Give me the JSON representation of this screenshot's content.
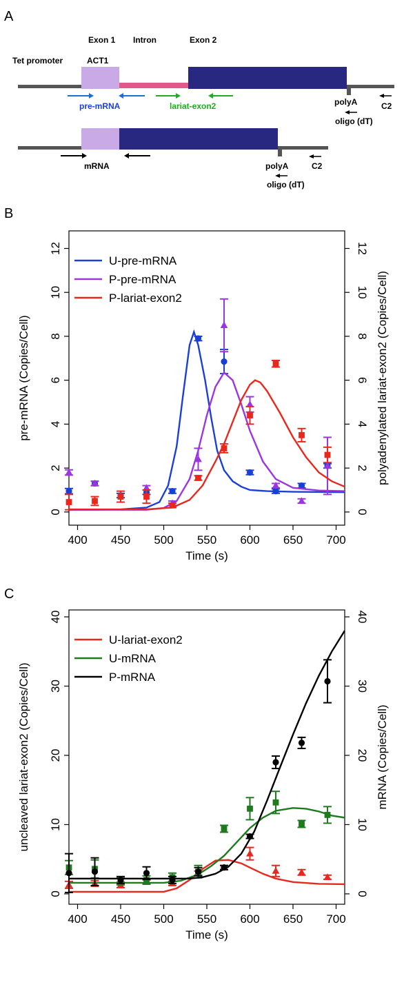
{
  "panel_a": {
    "label": "A",
    "exon1": "Exon 1",
    "intron": "Intron",
    "exon2": "Exon 2",
    "tet_promoter": "Tet promoter",
    "act1": "ACT1",
    "pre_mrna": "pre-mRNA",
    "lariat_exon2": "lariat-exon2",
    "polyA_top": "polyA",
    "oligo_top": "oligo (dT)",
    "c2_top": "C2",
    "mrna": "mRNA",
    "polyA_bottom": "polyA",
    "oligo_bottom": "oligo (dT)",
    "c2_bottom": "C2"
  },
  "colors": {
    "exon1": "#c9a9e6",
    "intron": "#e2588a",
    "exon2": "#282880",
    "line": "#555555",
    "blue": "#1a3fd6",
    "purple": "#9b35e0",
    "red": "#e8281e",
    "green": "#1f7a1f",
    "black": "#000000"
  },
  "chart_data": [
    {
      "panel": "B",
      "type": "line",
      "xlabel": "Time (s)",
      "ylabel_left": "pre-mRNA (Copies/Cell)",
      "ylabel_right": "polyadenylated lariat-exon2 (Copies/Cell)",
      "xlim": [
        390,
        710
      ],
      "ylim": [
        -0.6,
        12.8
      ],
      "xticks": [
        400,
        450,
        500,
        550,
        600,
        650,
        700
      ],
      "yticks": [
        0,
        2,
        4,
        6,
        8,
        10,
        12
      ],
      "legend_position": "top-left",
      "series": [
        {
          "name": "U-pre-mRNA",
          "color": "#1a3fd6",
          "marker": "circle",
          "curve": {
            "x": [
              390,
              420,
              450,
              480,
              495,
              505,
              515,
              522,
              530,
              535,
              540,
              548,
              555,
              562,
              570,
              580,
              590,
              600,
              620,
              650,
              710
            ],
            "y": [
              0.1,
              0.1,
              0.12,
              0.2,
              0.45,
              1.2,
              3.0,
              5.2,
              7.6,
              8.2,
              7.6,
              6.0,
              4.3,
              2.8,
              1.9,
              1.4,
              1.15,
              1.0,
              0.95,
              0.92,
              0.9
            ]
          },
          "points": [
            {
              "x": 390,
              "y": 0.95,
              "err": 0.12
            },
            {
              "x": 420,
              "y": 1.3,
              "err": 0.1
            },
            {
              "x": 450,
              "y": 0.75,
              "err": 0.1
            },
            {
              "x": 480,
              "y": 0.9,
              "err": 0.1
            },
            {
              "x": 510,
              "y": 0.95,
              "err": 0.1
            },
            {
              "x": 540,
              "y": 7.9,
              "err": 0.1
            },
            {
              "x": 570,
              "y": 6.85,
              "err": 0.55
            },
            {
              "x": 600,
              "y": 1.8,
              "err": 0.1
            },
            {
              "x": 630,
              "y": 0.95,
              "err": 0.1
            },
            {
              "x": 660,
              "y": 1.2,
              "err": 0.1
            },
            {
              "x": 690,
              "y": 2.1,
              "err": 0.1
            }
          ]
        },
        {
          "name": "P-pre-mRNA",
          "color": "#9b35e0",
          "marker": "triangle",
          "curve": {
            "x": [
              390,
              480,
              500,
              515,
              530,
              540,
              550,
              560,
              570,
              580,
              590,
              600,
              615,
              630,
              650,
              680,
              710
            ],
            "y": [
              0.1,
              0.1,
              0.18,
              0.5,
              1.5,
              2.8,
              4.4,
              5.7,
              6.35,
              6.0,
              4.9,
              3.7,
              2.3,
              1.5,
              1.1,
              0.98,
              0.95
            ]
          },
          "points": [
            {
              "x": 390,
              "y": 1.8,
              "err": 0.12
            },
            {
              "x": 420,
              "y": 1.3,
              "err": 0.1
            },
            {
              "x": 480,
              "y": 1.1,
              "err": 0.1
            },
            {
              "x": 510,
              "y": 0.4,
              "err": 0.1
            },
            {
              "x": 540,
              "y": 2.4,
              "err": 0.5
            },
            {
              "x": 570,
              "y": 8.5,
              "err": 1.2
            },
            {
              "x": 600,
              "y": 4.9,
              "err": 0.35
            },
            {
              "x": 630,
              "y": 1.2,
              "err": 0.1
            },
            {
              "x": 660,
              "y": 0.5,
              "err": 0.1
            },
            {
              "x": 690,
              "y": 2.1,
              "err": 1.3
            }
          ]
        },
        {
          "name": "P-lariat-exon2",
          "color": "#e8281e",
          "marker": "square",
          "curve": {
            "x": [
              390,
              480,
              510,
              530,
              545,
              560,
              570,
              580,
              590,
              600,
              606,
              612,
              620,
              635,
              650,
              665,
              680,
              695,
              710
            ],
            "y": [
              0.12,
              0.12,
              0.2,
              0.55,
              1.2,
              2.3,
              3.1,
              4.1,
              5.1,
              5.8,
              6.0,
              5.9,
              5.5,
              4.5,
              3.4,
              2.5,
              1.8,
              1.4,
              1.15
            ]
          },
          "points": [
            {
              "x": 390,
              "y": 0.45,
              "err": 0.35
            },
            {
              "x": 420,
              "y": 0.5,
              "err": 0.2
            },
            {
              "x": 450,
              "y": 0.7,
              "err": 0.25
            },
            {
              "x": 480,
              "y": 0.7,
              "err": 0.3
            },
            {
              "x": 510,
              "y": 0.3,
              "err": 0.1
            },
            {
              "x": 540,
              "y": 1.55,
              "err": 0.1
            },
            {
              "x": 570,
              "y": 2.9,
              "err": 0.2
            },
            {
              "x": 600,
              "y": 4.4,
              "err": 0.4
            },
            {
              "x": 630,
              "y": 6.75,
              "err": 0.15
            },
            {
              "x": 660,
              "y": 3.5,
              "err": 0.3
            },
            {
              "x": 690,
              "y": 2.6,
              "err": 0.35
            }
          ]
        }
      ]
    },
    {
      "panel": "C",
      "type": "line",
      "xlabel": "Time (s)",
      "ylabel_left": "uncleaved lariat-exon2 (Copies/Cell)",
      "ylabel_right": "mRNA (Copies/Cell)",
      "xlim": [
        390,
        710
      ],
      "ylim": [
        -1.5,
        41
      ],
      "xticks": [
        400,
        450,
        500,
        550,
        600,
        650,
        700
      ],
      "yticks": [
        0,
        10,
        20,
        30,
        40
      ],
      "legend_position": "top-left",
      "series": [
        {
          "name": "U-lariat-exon2",
          "color": "#e8281e",
          "marker": "triangle",
          "curve": {
            "x": [
              390,
              500,
              515,
              530,
              545,
              560,
              575,
              590,
              600,
              615,
              630,
              650,
              680,
              710
            ],
            "y": [
              0.3,
              0.3,
              0.8,
              2.0,
              3.6,
              4.8,
              4.9,
              4.4,
              3.8,
              2.9,
              2.2,
              1.7,
              1.45,
              1.4
            ]
          },
          "points": [
            {
              "x": 390,
              "y": 1.3,
              "err": 0.5
            },
            {
              "x": 420,
              "y": 1.5,
              "err": 0.4
            },
            {
              "x": 450,
              "y": 1.3,
              "err": 0.4
            },
            {
              "x": 480,
              "y": 1.7,
              "err": 0.3
            },
            {
              "x": 510,
              "y": 1.5,
              "err": 0.3
            },
            {
              "x": 540,
              "y": 3.0,
              "err": 0.3
            },
            {
              "x": 570,
              "y": 3.8,
              "err": 0.3
            },
            {
              "x": 600,
              "y": 5.8,
              "err": 0.9
            },
            {
              "x": 630,
              "y": 3.3,
              "err": 0.8
            },
            {
              "x": 660,
              "y": 3.1,
              "err": 0.4
            },
            {
              "x": 690,
              "y": 2.4,
              "err": 0.3
            }
          ]
        },
        {
          "name": "U-mRNA",
          "color": "#1f7a1f",
          "marker": "square",
          "curve": {
            "x": [
              390,
              500,
              520,
              540,
              555,
              570,
              585,
              600,
              615,
              630,
              650,
              665,
              680,
              695,
              710
            ],
            "y": [
              1.6,
              1.6,
              1.9,
              2.8,
              4.0,
              5.5,
              7.5,
              9.5,
              11.0,
              12.0,
              12.4,
              12.3,
              11.9,
              11.3,
              11.0
            ]
          },
          "points": [
            {
              "x": 390,
              "y": 3.8,
              "err": 1.0
            },
            {
              "x": 420,
              "y": 3.6,
              "err": 1.3
            },
            {
              "x": 450,
              "y": 1.8,
              "err": 0.5
            },
            {
              "x": 480,
              "y": 2.0,
              "err": 0.6
            },
            {
              "x": 510,
              "y": 2.4,
              "err": 0.6
            },
            {
              "x": 540,
              "y": 3.2,
              "err": 0.9
            },
            {
              "x": 570,
              "y": 9.4,
              "err": 0.5
            },
            {
              "x": 600,
              "y": 12.3,
              "err": 1.6
            },
            {
              "x": 630,
              "y": 13.2,
              "err": 1.6
            },
            {
              "x": 660,
              "y": 10.1,
              "err": 0.5
            },
            {
              "x": 690,
              "y": 11.4,
              "err": 1.2
            }
          ]
        },
        {
          "name": "P-mRNA",
          "color": "#000000",
          "marker": "circle",
          "curve": {
            "x": [
              390,
              530,
              545,
              560,
              575,
              590,
              605,
              620,
              635,
              650,
              665,
              680,
              695,
              710
            ],
            "y": [
              2.2,
              2.2,
              2.4,
              2.9,
              3.9,
              5.8,
              9.0,
              13.5,
              18.3,
              23.0,
              27.5,
              31.5,
              35.0,
              38.0
            ]
          },
          "points": [
            {
              "x": 390,
              "y": 3.0,
              "err": 2.8
            },
            {
              "x": 420,
              "y": 3.2,
              "err": 2.0
            },
            {
              "x": 450,
              "y": 2.0,
              "err": 0.5
            },
            {
              "x": 480,
              "y": 3.0,
              "err": 0.9
            },
            {
              "x": 510,
              "y": 2.0,
              "err": 0.5
            },
            {
              "x": 540,
              "y": 3.2,
              "err": 0.6
            },
            {
              "x": 570,
              "y": 3.8,
              "err": 0.3
            },
            {
              "x": 600,
              "y": 8.3,
              "err": 0.3
            },
            {
              "x": 630,
              "y": 19.0,
              "err": 0.9
            },
            {
              "x": 660,
              "y": 21.8,
              "err": 0.8
            },
            {
              "x": 690,
              "y": 30.7,
              "err": 3.1
            }
          ]
        }
      ]
    }
  ]
}
